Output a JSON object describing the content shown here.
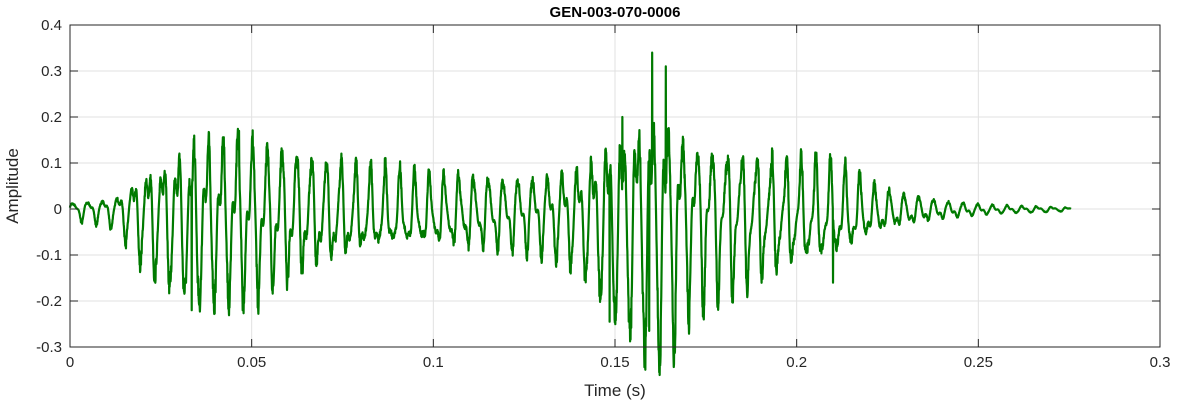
{
  "chart_data": {
    "type": "line",
    "title": "GEN-003-070-0006",
    "xlabel": "Time (s)",
    "ylabel": "Amplitude",
    "xlim": [
      0,
      0.3
    ],
    "ylim": [
      -0.3,
      0.4
    ],
    "x_ticks": [
      0,
      0.05,
      0.1,
      0.15,
      0.2,
      0.25,
      0.3
    ],
    "x_tick_labels": [
      "0",
      "0.05",
      "0.1",
      "0.15",
      "0.2",
      "0.25",
      "0.3"
    ],
    "y_ticks": [
      -0.3,
      -0.2,
      -0.1,
      0,
      0.1,
      0.2,
      0.3,
      0.4
    ],
    "y_tick_labels": [
      "-0.3",
      "-0.2",
      "-0.1",
      "0",
      "0.1",
      "0.2",
      "0.3",
      "0.4"
    ],
    "grid": true,
    "line_color": "#007a00",
    "series": [
      {
        "x_start": 0,
        "x_end": 0.2755,
        "envelope": [
          [
            0.0,
            0.02
          ],
          [
            0.005,
            0.025
          ],
          [
            0.01,
            0.03
          ],
          [
            0.013,
            0.04
          ],
          [
            0.016,
            0.07
          ],
          [
            0.02,
            0.11
          ],
          [
            0.025,
            0.14
          ],
          [
            0.03,
            0.16
          ],
          [
            0.035,
            0.19
          ],
          [
            0.04,
            0.19
          ],
          [
            0.045,
            0.19
          ],
          [
            0.05,
            0.19
          ],
          [
            0.055,
            0.16
          ],
          [
            0.06,
            0.15
          ],
          [
            0.065,
            0.13
          ],
          [
            0.07,
            0.12
          ],
          [
            0.075,
            0.11
          ],
          [
            0.08,
            0.1
          ],
          [
            0.09,
            0.09
          ],
          [
            0.1,
            0.08
          ],
          [
            0.11,
            0.08
          ],
          [
            0.12,
            0.08
          ],
          [
            0.13,
            0.09
          ],
          [
            0.14,
            0.12
          ],
          [
            0.145,
            0.16
          ],
          [
            0.15,
            0.21
          ],
          [
            0.155,
            0.25
          ],
          [
            0.16,
            0.3
          ],
          [
            0.163,
            0.29
          ],
          [
            0.167,
            0.25
          ],
          [
            0.17,
            0.2
          ],
          [
            0.18,
            0.17
          ],
          [
            0.19,
            0.14
          ],
          [
            0.2,
            0.12
          ],
          [
            0.21,
            0.11
          ],
          [
            0.215,
            0.09
          ],
          [
            0.22,
            0.06
          ],
          [
            0.225,
            0.045
          ],
          [
            0.23,
            0.035
          ],
          [
            0.24,
            0.02
          ],
          [
            0.25,
            0.012
          ],
          [
            0.26,
            0.008
          ],
          [
            0.27,
            0.006
          ],
          [
            0.2755,
            0.004
          ]
        ],
        "peaks": [
          [
            0.0465,
            0.17
          ],
          [
            0.0475,
            -0.22
          ],
          [
            0.0335,
            -0.22
          ],
          [
            0.1602,
            0.34
          ],
          [
            0.164,
            0.31
          ],
          [
            0.1594,
            -0.265
          ],
          [
            0.1485,
            -0.245
          ],
          [
            0.152,
            0.2
          ],
          [
            0.21,
            0.15
          ],
          [
            0.21,
            -0.16
          ]
        ]
      }
    ]
  }
}
